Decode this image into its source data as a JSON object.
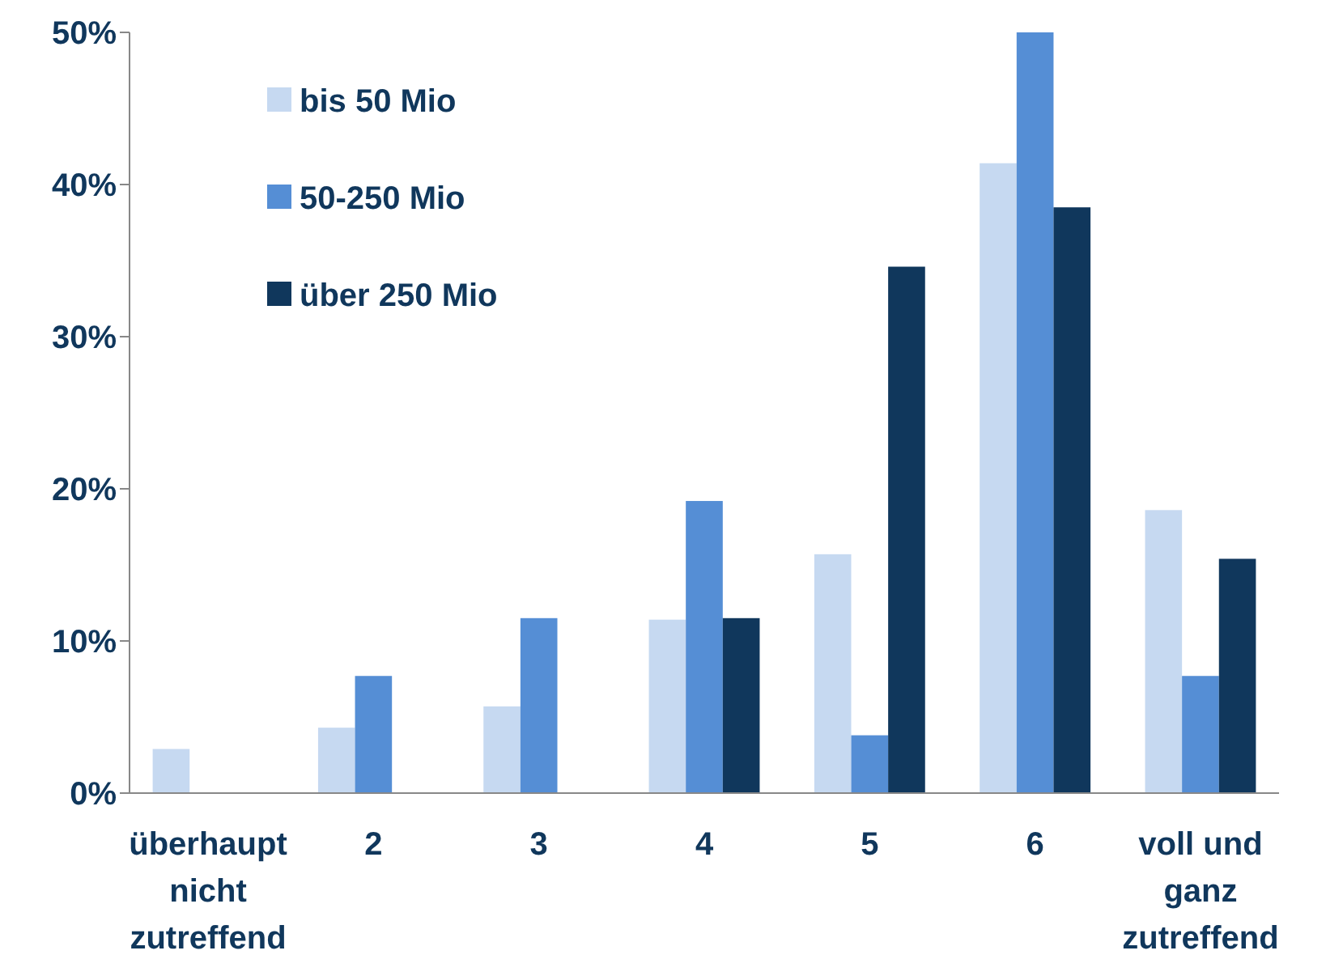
{
  "chart_data": {
    "type": "bar",
    "categories": [
      "überhaupt nicht zutreffend",
      "2",
      "3",
      "4",
      "5",
      "6",
      "voll und ganz zutreffend"
    ],
    "series": [
      {
        "name": "bis 50 Mio",
        "color": "#c6d9f1",
        "values": [
          2.9,
          4.3,
          5.7,
          11.4,
          15.7,
          41.4,
          18.6
        ]
      },
      {
        "name": "50-250 Mio",
        "color": "#558ed5",
        "values": [
          0,
          7.7,
          11.5,
          19.2,
          3.8,
          50,
          7.7
        ]
      },
      {
        "name": "über 250 Mio",
        "color": "#10375c",
        "values": [
          0,
          0,
          0,
          11.5,
          34.6,
          38.5,
          15.4
        ]
      }
    ],
    "ylim": [
      0,
      50
    ],
    "yticks": [
      {
        "value": 0,
        "label": "0%"
      },
      {
        "value": 10,
        "label": "10%"
      },
      {
        "value": 20,
        "label": "20%"
      },
      {
        "value": 30,
        "label": "30%"
      },
      {
        "value": 40,
        "label": "40%"
      },
      {
        "value": 50,
        "label": "50%"
      }
    ],
    "grid": false,
    "legend": "top left"
  }
}
